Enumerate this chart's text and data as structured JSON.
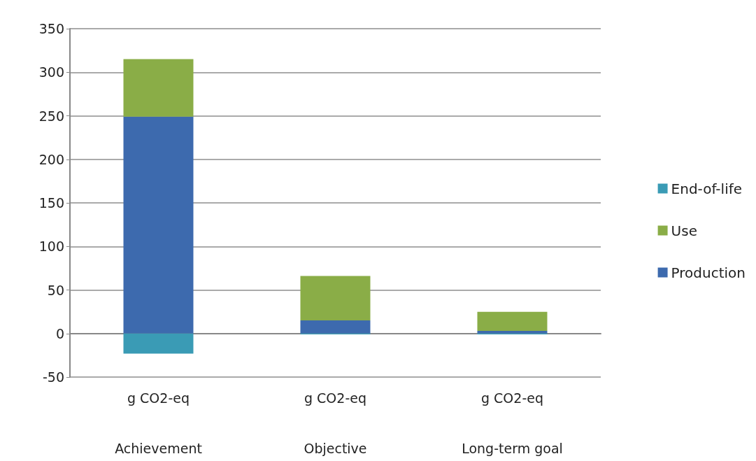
{
  "chart_data": {
    "type": "bar",
    "stacked": true,
    "categories": [
      "Achievement",
      "Objective",
      "Long-term goal"
    ],
    "annotations": [
      "g CO2-eq",
      "g CO2-eq",
      "g CO2-eq"
    ],
    "series": [
      {
        "name": "Production",
        "color": "#3d6aae",
        "values": [
          249,
          15,
          3
        ]
      },
      {
        "name": "Use",
        "color": "#8aad47",
        "values": [
          66,
          51,
          22
        ]
      },
      {
        "name": "End-of-life",
        "color": "#3a9bb5",
        "values": [
          -23,
          -1,
          -1
        ]
      }
    ],
    "ylim": [
      -50,
      350
    ],
    "yticks": [
      -50,
      0,
      50,
      100,
      150,
      200,
      250,
      300,
      350
    ],
    "grid": "y",
    "legend": "right"
  }
}
